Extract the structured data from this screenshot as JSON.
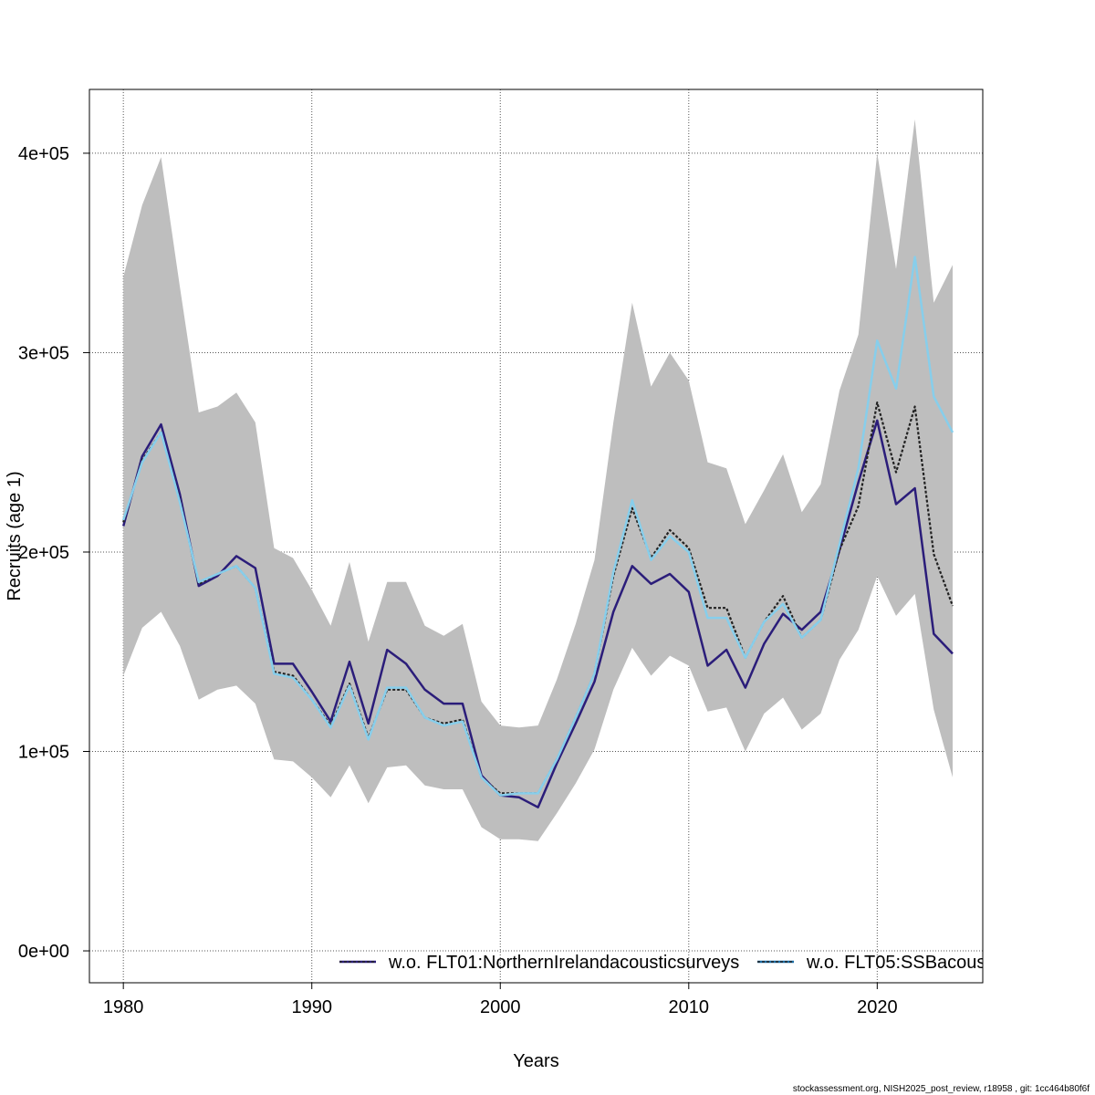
{
  "chart_data": {
    "type": "line",
    "title": "",
    "xlabel": "Years",
    "ylabel": "Recruits (age 1)",
    "xlim": [
      1978.2,
      2025.6
    ],
    "ylim": [
      -16000,
      432000
    ],
    "x_ticks": [
      1980,
      1990,
      2000,
      2010,
      2020
    ],
    "x_tick_labels": [
      "1980",
      "1990",
      "2000",
      "2010",
      "2020"
    ],
    "y_ticks": [
      0,
      100000,
      200000,
      300000,
      400000
    ],
    "y_tick_labels": [
      "0e+00",
      "1e+05",
      "2e+05",
      "3e+05",
      "4e+05"
    ],
    "grid": true,
    "legend_position": "bottom-right",
    "x": [
      1980,
      1981,
      1982,
      1983,
      1984,
      1985,
      1986,
      1987,
      1988,
      1989,
      1990,
      1991,
      1992,
      1993,
      1994,
      1995,
      1996,
      1997,
      1998,
      1999,
      2000,
      2001,
      2002,
      2003,
      2004,
      2005,
      2006,
      2007,
      2008,
      2009,
      2010,
      2011,
      2012,
      2013,
      2014,
      2015,
      2016,
      2017,
      2018,
      2019,
      2020,
      2021,
      2022,
      2023,
      2024
    ],
    "band": {
      "upper": [
        338000,
        374000,
        398000,
        333000,
        270000,
        273000,
        280000,
        265000,
        202000,
        197000,
        181000,
        163000,
        195000,
        155000,
        185000,
        185000,
        163000,
        158000,
        164000,
        125000,
        113000,
        112000,
        113000,
        136000,
        164000,
        196000,
        265000,
        325000,
        283000,
        300000,
        286000,
        245000,
        242000,
        214000,
        231000,
        249000,
        220000,
        234000,
        281000,
        309000,
        400000,
        342000,
        417000,
        325000,
        344000
      ],
      "lower": [
        138000,
        162000,
        170000,
        153000,
        126000,
        131000,
        133000,
        124000,
        96000,
        95000,
        87000,
        77000,
        93000,
        74000,
        92000,
        93000,
        83000,
        81000,
        81000,
        62000,
        56000,
        56000,
        55000,
        69000,
        84000,
        101000,
        131000,
        152000,
        138000,
        148000,
        143000,
        120000,
        122000,
        100000,
        119000,
        127000,
        111000,
        119000,
        146000,
        161000,
        188000,
        168000,
        179000,
        121000,
        87000
      ]
    },
    "series": [
      {
        "name": "w.o. FLT01:NorthernIrelandacousticsurveys",
        "color": "#2b1d7a",
        "dash": "solid",
        "values": [
          213000,
          248000,
          264000,
          229000,
          183000,
          188000,
          198000,
          192000,
          144000,
          144000,
          130000,
          115000,
          145000,
          114000,
          151000,
          144000,
          131000,
          124000,
          124000,
          88000,
          78000,
          77000,
          72000,
          94000,
          114000,
          135000,
          170000,
          193000,
          184000,
          189000,
          180000,
          143000,
          151000,
          132000,
          154000,
          169000,
          161000,
          170000,
          201000,
          235000,
          266000,
          224000,
          232000,
          159000,
          149000
        ]
      },
      {
        "name": "",
        "color": "#222222",
        "dash": "dashed",
        "values": [
          215000,
          246000,
          260000,
          226000,
          184000,
          189000,
          193000,
          182000,
          140000,
          138000,
          126000,
          113000,
          134000,
          107000,
          131000,
          131000,
          117000,
          114000,
          116000,
          87000,
          79000,
          79000,
          79000,
          96000,
          117000,
          139000,
          188000,
          222000,
          197000,
          211000,
          202000,
          172000,
          172000,
          147000,
          165000,
          178000,
          157000,
          166000,
          201000,
          223000,
          275000,
          240000,
          273000,
          199000,
          173000
        ]
      },
      {
        "name": "w.o. FLT05:SSBacous",
        "color": "#87ceeb",
        "dash": "solid",
        "values": [
          216000,
          245000,
          260000,
          225000,
          185000,
          189000,
          193000,
          182000,
          139000,
          137000,
          126000,
          112000,
          133000,
          106000,
          132000,
          132000,
          117000,
          113000,
          115000,
          87000,
          78000,
          79000,
          79000,
          96000,
          117000,
          139000,
          190000,
          226000,
          196000,
          208000,
          200000,
          167000,
          167000,
          147000,
          165000,
          174000,
          157000,
          166000,
          204000,
          242000,
          306000,
          282000,
          348000,
          278000,
          260000
        ]
      }
    ],
    "legend": [
      {
        "label": "w.o. FLT01:NorthernIrelandacousticsurveys",
        "color": "#2b1d7a",
        "dash_color": "#222222"
      },
      {
        "label": "w.o. FLT05:SSBacous",
        "color": "#1a6fa8",
        "dash_color": "#222222"
      }
    ]
  },
  "footer": "stockassessment.org, NISH2025_post_review, r18958 , git: 1cc464b80f6f"
}
